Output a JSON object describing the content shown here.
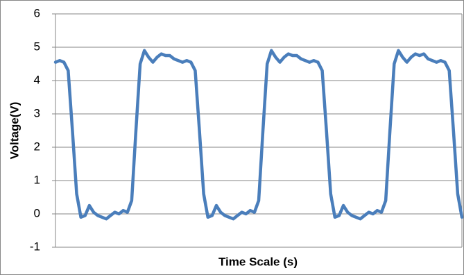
{
  "chart_data": {
    "type": "line",
    "x_label": "Time Scale (s)",
    "y_label": "Voltage(V)",
    "categories": [
      null,
      null,
      null,
      null,
      null,
      null,
      null,
      null,
      null,
      null,
      null,
      null,
      null,
      null,
      null,
      null,
      null,
      null,
      null,
      null,
      null,
      null,
      null,
      null,
      null,
      null,
      null,
      null,
      null,
      null,
      null,
      null,
      null,
      null,
      null,
      null,
      null,
      null,
      null,
      null,
      null,
      null,
      null,
      null,
      null,
      null,
      null,
      null,
      null,
      null,
      null,
      null,
      null,
      null,
      null,
      null,
      null,
      null,
      null,
      null,
      null,
      null,
      null,
      null,
      null,
      null,
      null,
      null,
      null,
      null,
      null,
      null,
      null,
      null,
      null,
      null,
      null,
      null,
      null,
      null,
      null,
      null,
      null,
      null,
      null,
      null,
      null,
      null,
      null,
      null,
      null,
      null,
      null,
      null,
      null,
      null,
      null
    ],
    "values": [
      4.55,
      4.6,
      4.55,
      4.3,
      2.5,
      0.6,
      -0.1,
      -0.05,
      0.25,
      0.05,
      -0.05,
      -0.1,
      -0.15,
      -0.05,
      0.05,
      0.0,
      0.1,
      0.05,
      0.4,
      2.5,
      4.5,
      4.9,
      4.7,
      4.55,
      4.7,
      4.8,
      4.75,
      4.75,
      4.65,
      4.6,
      4.55,
      4.6,
      4.55,
      4.3,
      2.5,
      0.6,
      -0.1,
      -0.05,
      0.25,
      0.05,
      -0.05,
      -0.1,
      -0.15,
      -0.05,
      0.05,
      0.0,
      0.1,
      0.05,
      0.4,
      2.5,
      4.5,
      4.9,
      4.7,
      4.55,
      4.7,
      4.8,
      4.75,
      4.75,
      4.65,
      4.6,
      4.55,
      4.6,
      4.55,
      4.3,
      2.5,
      0.6,
      -0.1,
      -0.05,
      0.25,
      0.05,
      -0.05,
      -0.1,
      -0.15,
      -0.05,
      0.05,
      0.0,
      0.1,
      0.05,
      0.4,
      2.5,
      4.5,
      4.9,
      4.7,
      4.55,
      4.7,
      4.8,
      4.75,
      4.8,
      4.65,
      4.6,
      4.55,
      4.6,
      4.55,
      4.3,
      2.5,
      0.6,
      -0.1
    ],
    "color": "#4a7ebb",
    "ylim": [
      -1,
      6
    ],
    "yticks": [
      -1,
      0,
      1,
      2,
      3,
      4,
      5,
      6
    ],
    "grid": true
  }
}
